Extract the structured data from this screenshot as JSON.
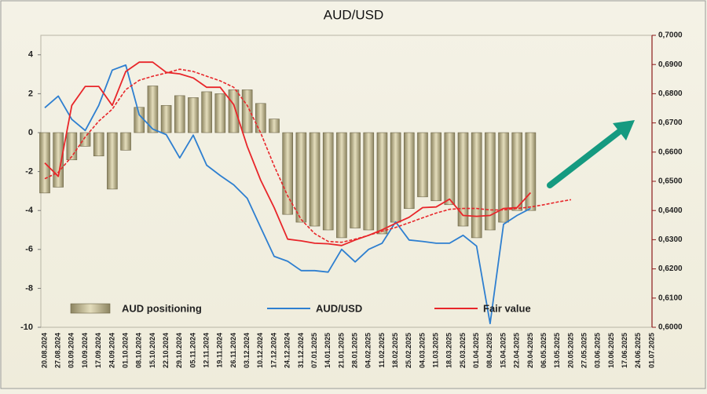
{
  "chart_data": {
    "type": "combo",
    "title": "AUD/USD",
    "categories": [
      "20.08.2024",
      "27.08.2024",
      "03.09.2024",
      "10.09.2024",
      "17.09.2024",
      "24.09.2024",
      "01.10.2024",
      "08.10.2024",
      "15.10.2024",
      "22.10.2024",
      "29.10.2024",
      "05.11.2024",
      "12.11.2024",
      "19.11.2024",
      "26.11.2024",
      "03.12.2024",
      "10.12.2024",
      "17.12.2024",
      "24.12.2024",
      "31.12.2024",
      "07.01.2025",
      "14.01.2025",
      "21.01.2025",
      "28.01.2025",
      "04.02.2025",
      "11.02.2025",
      "18.02.2025",
      "25.02.2025",
      "04.03.2025",
      "11.03.2025",
      "18.03.2025",
      "25.03.2025",
      "01.04.2025",
      "08.04.2025",
      "15.04.2025",
      "22.04.2025",
      "29.04.2025",
      "06.05.2025",
      "13.05.2025",
      "20.05.2025",
      "27.05.2025",
      "03.06.2025",
      "10.06.2025",
      "17.06.2025",
      "24.06.2025",
      "01.07.2025"
    ],
    "ylim": [
      -10,
      5
    ],
    "yticks": [
      -10,
      -8,
      -6,
      -4,
      -2,
      0,
      2,
      4
    ],
    "y2lim": [
      0.6,
      0.7
    ],
    "y2ticks": [
      {
        "value": 0.6,
        "label": "0,6000"
      },
      {
        "value": 0.61,
        "label": "0,6100"
      },
      {
        "value": 0.62,
        "label": "0,6200"
      },
      {
        "value": 0.63,
        "label": "0,6300"
      },
      {
        "value": 0.64,
        "label": "0,6400"
      },
      {
        "value": 0.65,
        "label": "0,6500"
      },
      {
        "value": 0.66,
        "label": "0,6600"
      },
      {
        "value": 0.67,
        "label": "0,6700"
      },
      {
        "value": 0.68,
        "label": "0,6800"
      },
      {
        "value": 0.69,
        "label": "0,6900"
      },
      {
        "value": 0.7,
        "label": "0,7000"
      }
    ],
    "grid": false,
    "legend": "bottom-left",
    "series": [
      {
        "name": "AUD positioning",
        "type": "bar",
        "color": "#bdb48a",
        "axis": "y",
        "values": [
          -3.1,
          -2.8,
          -1.4,
          -0.7,
          -1.2,
          -2.9,
          -0.9,
          1.3,
          2.4,
          1.4,
          1.9,
          1.8,
          2.1,
          2.0,
          2.2,
          2.2,
          1.5,
          0.7,
          -4.2,
          -4.6,
          -4.8,
          -5.0,
          -5.4,
          -4.9,
          -5.0,
          -5.2,
          -4.6,
          -3.9,
          -3.3,
          -3.5,
          -3.7,
          -4.8,
          -5.4,
          -5.0,
          -4.6,
          -4.0,
          -4.0,
          null,
          null,
          null,
          null,
          null,
          null,
          null,
          null,
          null
        ]
      },
      {
        "name": "AUD/USD",
        "type": "line",
        "color": "#2e7fd0",
        "axis": "y2",
        "values": [
          0.6752,
          0.6792,
          0.6712,
          0.6674,
          0.676,
          0.6881,
          0.6898,
          0.6728,
          0.6679,
          0.666,
          0.658,
          0.6658,
          0.6555,
          0.652,
          0.6488,
          0.6442,
          0.6342,
          0.6243,
          0.6226,
          0.6194,
          0.6194,
          0.6189,
          0.6267,
          0.6224,
          0.6267,
          0.6288,
          0.6361,
          0.6299,
          0.6294,
          0.6288,
          0.6288,
          0.6315,
          0.6278,
          0.6013,
          0.6353,
          0.6383,
          0.6407,
          null,
          null,
          null,
          null,
          null,
          null,
          null,
          null,
          null
        ]
      },
      {
        "name": "Fair value",
        "type": "line",
        "color": "#e8262a",
        "axis": "y2",
        "values": [
          0.6563,
          0.6517,
          0.676,
          0.6825,
          0.6825,
          0.676,
          0.6876,
          0.6908,
          0.6908,
          0.6873,
          0.6868,
          0.6854,
          0.6822,
          0.6822,
          0.6763,
          0.662,
          0.6504,
          0.641,
          0.6302,
          0.6296,
          0.6288,
          0.6286,
          0.628,
          0.6299,
          0.6315,
          0.6334,
          0.6356,
          0.6377,
          0.641,
          0.6412,
          0.6439,
          0.6383,
          0.638,
          0.6383,
          0.6407,
          0.641,
          0.6461,
          null,
          null,
          null,
          null,
          null,
          null,
          null,
          null,
          null
        ]
      },
      {
        "type": "line",
        "dashed": true,
        "color": "#e8262a",
        "axis": "y2",
        "values": [
          0.6509,
          0.6531,
          0.6585,
          0.6652,
          0.6706,
          0.6747,
          0.6814,
          0.6846,
          0.686,
          0.6871,
          0.6884,
          0.6876,
          0.686,
          0.6844,
          0.6822,
          0.676,
          0.6666,
          0.6553,
          0.645,
          0.6369,
          0.6321,
          0.6294,
          0.6291,
          0.6302,
          0.6315,
          0.6329,
          0.6342,
          0.6358,
          0.6375,
          0.6391,
          0.6404,
          0.6407,
          0.6407,
          0.6402,
          0.6402,
          0.6407,
          0.6412,
          0.642,
          0.6429,
          0.6437,
          null,
          null,
          null,
          null,
          null,
          null
        ]
      }
    ]
  }
}
